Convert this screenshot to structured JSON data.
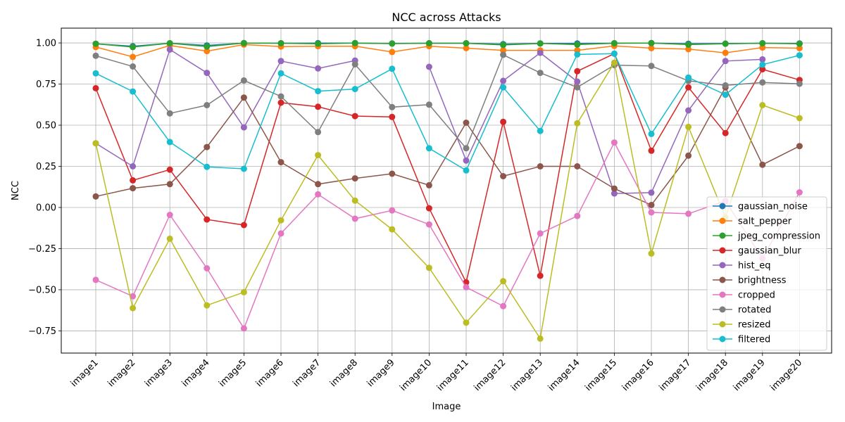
{
  "chart_data": {
    "type": "line",
    "title": "NCC across Attacks",
    "xlabel": "Image",
    "ylabel": "NCC",
    "ylim": [
      -0.885,
      1.09
    ],
    "yticks": [
      -0.75,
      -0.5,
      -0.25,
      0.0,
      0.25,
      0.5,
      0.75,
      1.0
    ],
    "ytick_labels": [
      "−0.75",
      "−0.50",
      "−0.25",
      "0.00",
      "0.25",
      "0.50",
      "0.75",
      "1.00"
    ],
    "grid": true,
    "legend_position": "lower-right",
    "categories": [
      "image1",
      "image2",
      "image3",
      "image4",
      "image5",
      "image6",
      "image7",
      "image8",
      "image9",
      "image10",
      "image11",
      "image12",
      "image13",
      "image14",
      "image15",
      "image16",
      "image17",
      "image18",
      "image19",
      "image20"
    ],
    "series": [
      {
        "name": "gaussian_noise",
        "color": "#1f77b4",
        "values": [
          0.995,
          0.98,
          0.998,
          0.985,
          0.999,
          0.998,
          0.999,
          0.999,
          0.997,
          0.998,
          0.998,
          0.993,
          0.997,
          0.997,
          0.998,
          0.999,
          0.995,
          0.996,
          0.998,
          0.997
        ]
      },
      {
        "name": "salt_pepper",
        "color": "#ff7f0e",
        "values": [
          0.975,
          0.915,
          0.985,
          0.95,
          0.99,
          0.978,
          0.98,
          0.98,
          0.945,
          0.98,
          0.968,
          0.955,
          0.955,
          0.955,
          0.982,
          0.968,
          0.962,
          0.94,
          0.972,
          0.968
        ]
      },
      {
        "name": "jpeg_compression",
        "color": "#2ca02c",
        "values": [
          0.995,
          0.975,
          0.998,
          0.978,
          0.999,
          0.998,
          0.995,
          0.999,
          0.996,
          0.998,
          0.998,
          0.988,
          0.997,
          0.99,
          0.998,
          0.999,
          0.99,
          0.995,
          0.998,
          0.995
        ]
      },
      {
        "name": "gaussian_blur",
        "color": "#d62728",
        "values": [
          0.725,
          0.165,
          0.23,
          -0.073,
          -0.107,
          0.637,
          0.612,
          0.555,
          0.55,
          -0.005,
          -0.455,
          0.52,
          -0.415,
          0.828,
          0.935,
          0.345,
          0.73,
          0.452,
          0.84,
          0.775
        ]
      },
      {
        "name": "hist_eq",
        "color": "#9467bd",
        "values": [
          0.39,
          0.25,
          0.96,
          0.818,
          0.487,
          0.89,
          0.845,
          0.893,
          null,
          0.855,
          0.285,
          0.77,
          0.94,
          0.765,
          0.085,
          0.09,
          0.59,
          0.89,
          0.9,
          null
        ]
      },
      {
        "name": "brightness",
        "color": "#8c564b",
        "values": [
          0.067,
          0.117,
          0.142,
          0.367,
          0.668,
          0.275,
          0.142,
          0.177,
          0.205,
          0.135,
          0.515,
          0.19,
          0.25,
          0.25,
          0.115,
          0.015,
          0.315,
          0.73,
          0.26,
          0.373
        ]
      },
      {
        "name": "cropped",
        "color": "#e377c2",
        "values": [
          -0.44,
          -0.54,
          -0.045,
          -0.37,
          -0.735,
          -0.158,
          0.08,
          -0.068,
          -0.018,
          -0.103,
          -0.485,
          -0.6,
          -0.158,
          -0.052,
          0.395,
          -0.03,
          -0.038,
          0.04,
          -0.31,
          0.092
        ]
      },
      {
        "name": "rotated",
        "color": "#7f7f7f",
        "values": [
          0.922,
          0.857,
          0.572,
          0.622,
          0.772,
          0.675,
          0.458,
          0.87,
          0.61,
          0.625,
          0.36,
          0.928,
          0.818,
          0.73,
          0.865,
          0.86,
          0.77,
          0.742,
          0.76,
          0.752
        ]
      },
      {
        "name": "resized",
        "color": "#bcbd22",
        "values": [
          0.39,
          -0.612,
          -0.19,
          -0.595,
          -0.515,
          -0.078,
          0.318,
          0.042,
          -0.133,
          -0.367,
          -0.7,
          -0.448,
          -0.797,
          0.512,
          0.88,
          -0.28,
          0.49,
          -0.06,
          0.622,
          0.543
        ]
      },
      {
        "name": "filtered",
        "color": "#17becf",
        "values": [
          0.815,
          0.705,
          0.398,
          0.247,
          0.235,
          0.815,
          0.707,
          0.72,
          0.843,
          0.36,
          0.225,
          0.73,
          0.465,
          0.93,
          0.935,
          0.447,
          0.79,
          0.685,
          0.868,
          0.925
        ]
      }
    ]
  }
}
